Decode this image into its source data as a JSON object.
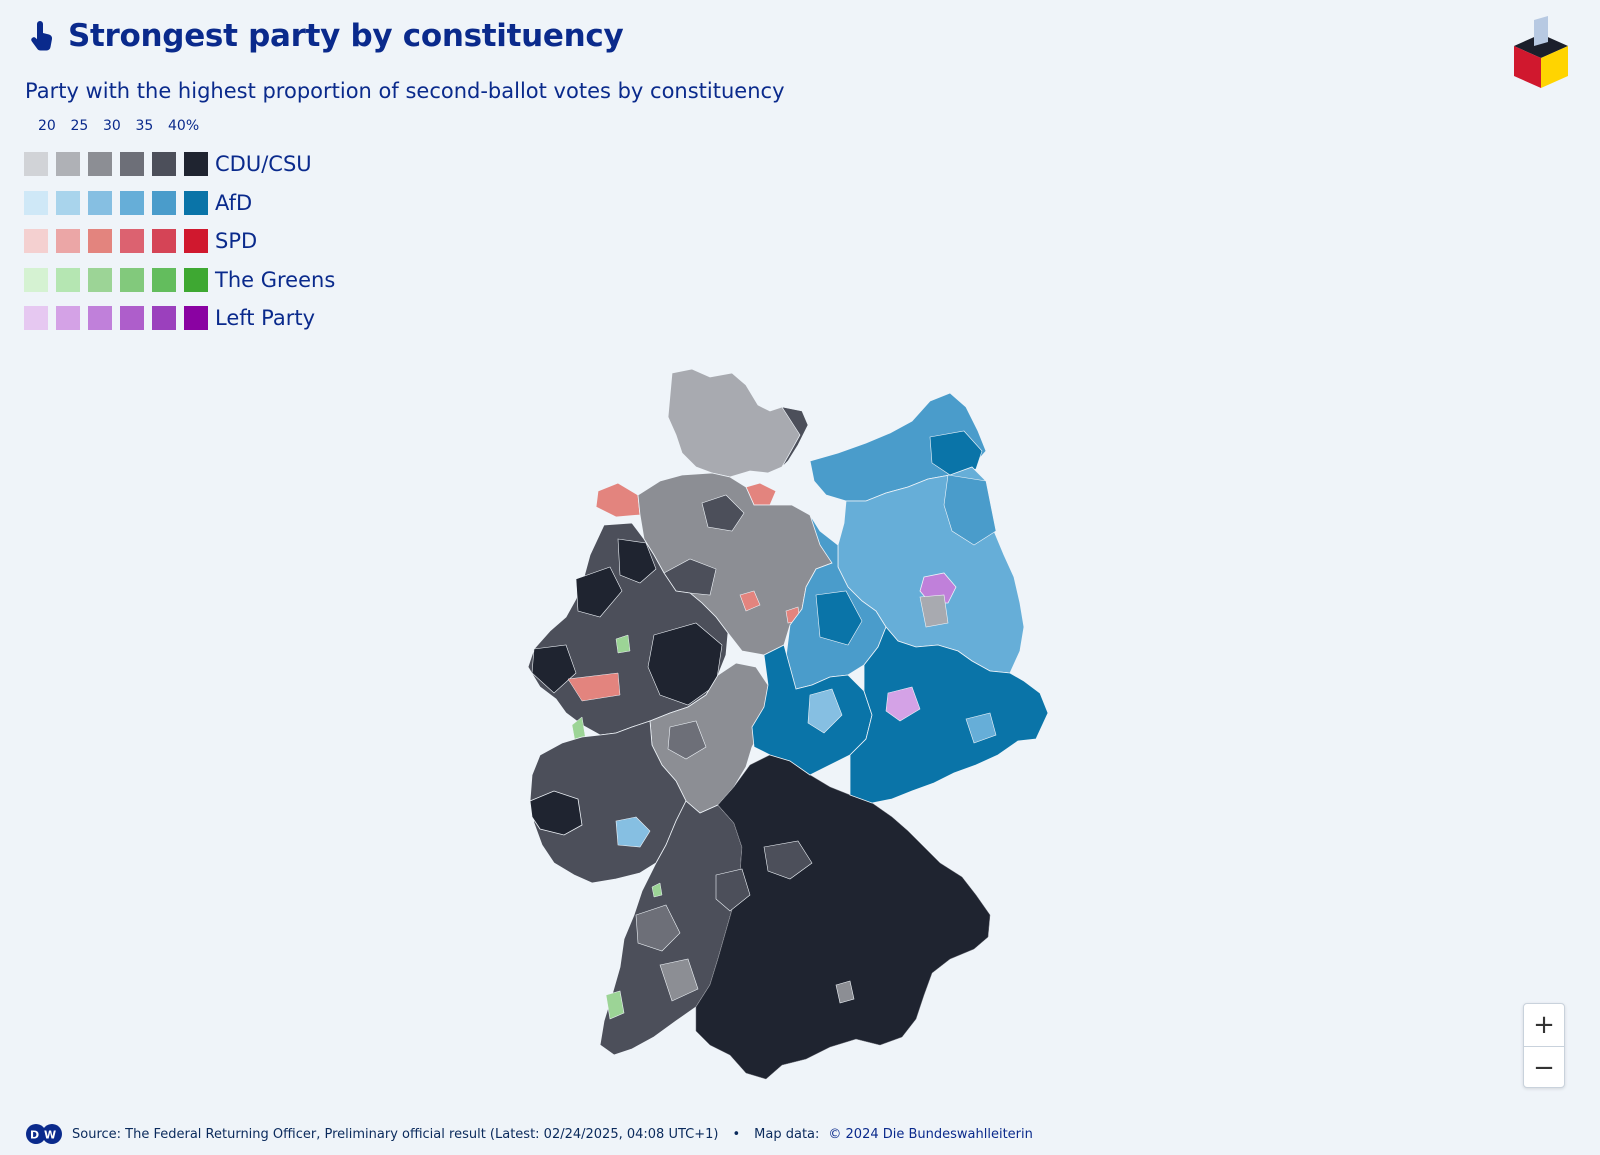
{
  "header": {
    "title": "Strongest party by constituency",
    "subtitle": "Party with the highest proportion of second-ballot votes by constituency"
  },
  "legend": {
    "scale_ticks": [
      "20",
      "25",
      "30",
      "35",
      "40%"
    ],
    "parties": [
      {
        "name": "CDU/CSU",
        "colors": [
          "#d1d3d7",
          "#afb1b6",
          "#8c8e94",
          "#6d6f78",
          "#4c4f5a",
          "#1f2430"
        ]
      },
      {
        "name": "AfD",
        "colors": [
          "#cfe8f7",
          "#a9d4ec",
          "#86bfe2",
          "#66aed8",
          "#4a9ccb",
          "#0a74a8"
        ]
      },
      {
        "name": "SPD",
        "colors": [
          "#f4d0d0",
          "#eba6a6",
          "#e3847e",
          "#dc6270",
          "#d54456",
          "#d0182e"
        ]
      },
      {
        "name": "The Greens",
        "colors": [
          "#d5f2d2",
          "#b5e6b2",
          "#9cd496",
          "#82c97c",
          "#63bd5d",
          "#3ea832"
        ]
      },
      {
        "name": "Left Party",
        "colors": [
          "#e6c8f1",
          "#d4a2e6",
          "#c080da",
          "#ae5ecb",
          "#9b40bd",
          "#8a02a2"
        ]
      }
    ]
  },
  "map": {
    "country": "Germany",
    "regions": [
      {
        "name": "Schleswig-Holstein",
        "party": "CDU/CSU",
        "color": "#8c8e94"
      },
      {
        "name": "Hamburg",
        "party": "SPD",
        "color": "#e3847e"
      },
      {
        "name": "Bremen",
        "party": "SPD",
        "color": "#e3847e"
      },
      {
        "name": "Lower Saxony",
        "party": "CDU/CSU",
        "color": "#8c8e94"
      },
      {
        "name": "North Rhine-Westphalia",
        "party": "CDU/CSU",
        "color": "#4c4f5a"
      },
      {
        "name": "Hesse",
        "party": "CDU/CSU",
        "color": "#6d6f78"
      },
      {
        "name": "Rhineland-Palatinate",
        "party": "CDU/CSU",
        "color": "#4c4f5a"
      },
      {
        "name": "Saarland",
        "party": "CDU/CSU",
        "color": "#1f2430"
      },
      {
        "name": "Baden-Württemberg",
        "party": "CDU/CSU",
        "color": "#4c4f5a"
      },
      {
        "name": "Bavaria",
        "party": "CDU/CSU",
        "color": "#1f2430"
      },
      {
        "name": "Mecklenburg-Vorpommern",
        "party": "AfD",
        "color": "#4a9ccb"
      },
      {
        "name": "Brandenburg",
        "party": "AfD",
        "color": "#66aed8"
      },
      {
        "name": "Berlin",
        "party": "Left Party",
        "color": "#c080da"
      },
      {
        "name": "Saxony-Anhalt",
        "party": "AfD",
        "color": "#4a9ccb"
      },
      {
        "name": "Thuringia",
        "party": "AfD",
        "color": "#0a74a8"
      },
      {
        "name": "Saxony",
        "party": "AfD",
        "color": "#0a74a8"
      }
    ]
  },
  "zoom": {
    "in_label": "+",
    "out_label": "−"
  },
  "footer": {
    "source": "Source: The Federal Returning Officer, Preliminary official result (Latest: 02/24/2025, 04:08 UTC+1)",
    "separator": "•",
    "map_data_prefix": "Map data:",
    "map_data_link": "© 2024 Die Bundeswahlleiterin"
  }
}
